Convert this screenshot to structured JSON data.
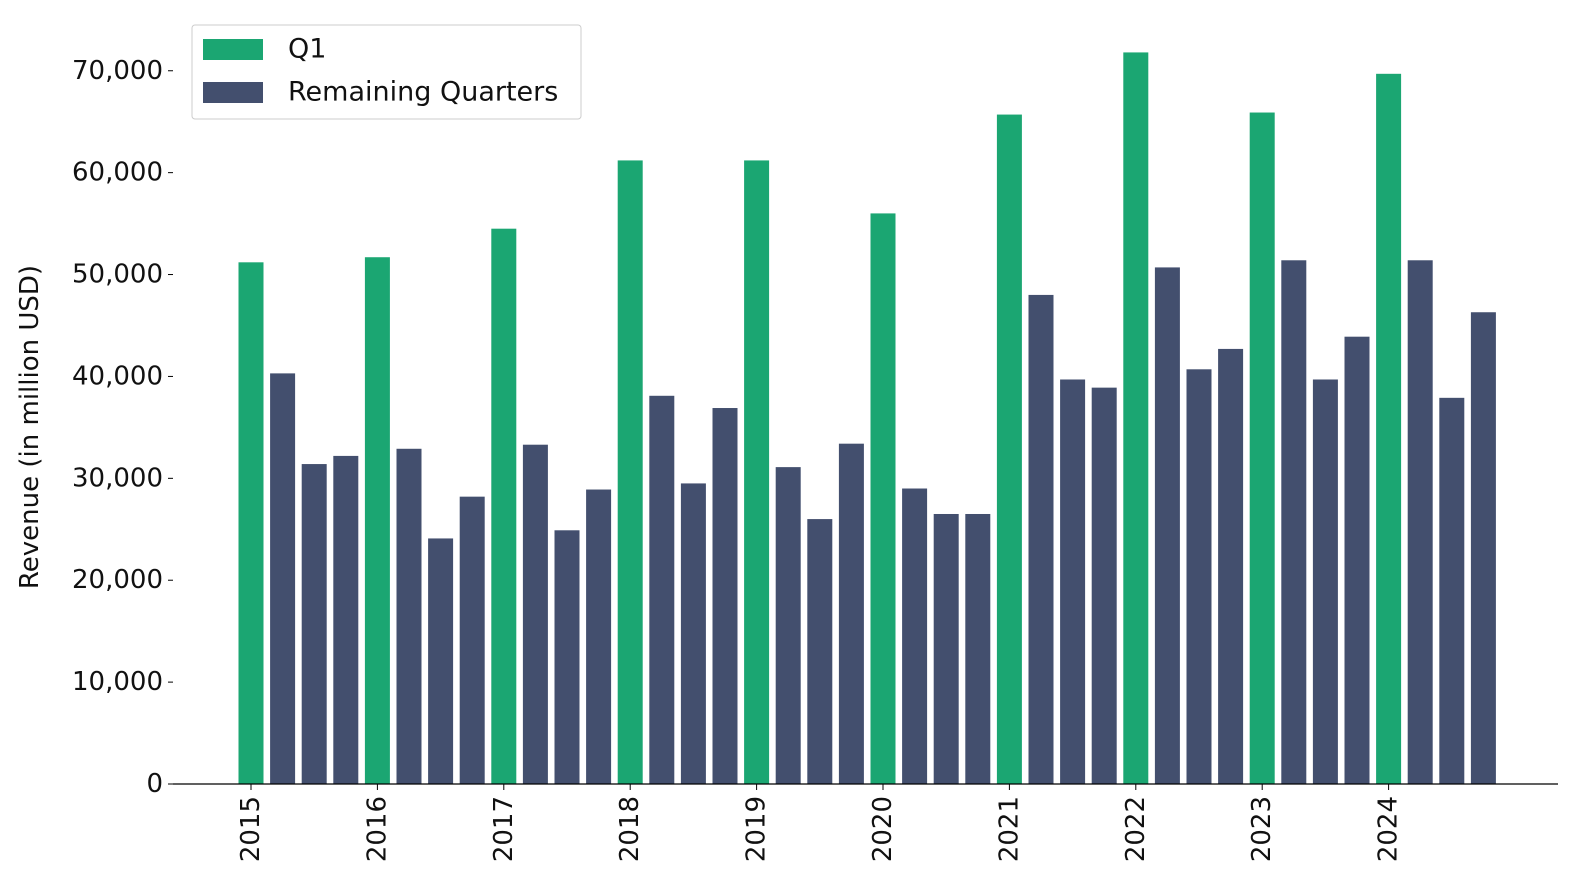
{
  "chart_data": {
    "type": "bar",
    "title": "",
    "xlabel": "",
    "ylabel": "Revenue (in million USD)",
    "ylim": [
      0,
      74000
    ],
    "yticks": [
      0,
      10000,
      20000,
      30000,
      40000,
      50000,
      60000,
      70000
    ],
    "ytick_labels": [
      "0",
      "10,000",
      "20,000",
      "30,000",
      "40,000",
      "50,000",
      "60,000",
      "70,000"
    ],
    "xtick_labels": [
      "2015",
      "2016",
      "2017",
      "2018",
      "2019",
      "2020",
      "2021",
      "2022",
      "2023",
      "2024"
    ],
    "legend_position": "top-left",
    "grid": false,
    "series": [
      {
        "name": "Q1",
        "color": "#1ba672"
      },
      {
        "name": "Remaining Quarters",
        "color": "#434f6e"
      }
    ],
    "bars": [
      {
        "year": 2015,
        "quarter": 1,
        "series": "Q1",
        "value": 51200
      },
      {
        "year": 2015,
        "quarter": 2,
        "series": "Remaining Quarters",
        "value": 40300
      },
      {
        "year": 2015,
        "quarter": 3,
        "series": "Remaining Quarters",
        "value": 31400
      },
      {
        "year": 2015,
        "quarter": 4,
        "series": "Remaining Quarters",
        "value": 32200
      },
      {
        "year": 2016,
        "quarter": 1,
        "series": "Q1",
        "value": 51700
      },
      {
        "year": 2016,
        "quarter": 2,
        "series": "Remaining Quarters",
        "value": 32900
      },
      {
        "year": 2016,
        "quarter": 3,
        "series": "Remaining Quarters",
        "value": 24100
      },
      {
        "year": 2016,
        "quarter": 4,
        "series": "Remaining Quarters",
        "value": 28200
      },
      {
        "year": 2017,
        "quarter": 1,
        "series": "Q1",
        "value": 54500
      },
      {
        "year": 2017,
        "quarter": 2,
        "series": "Remaining Quarters",
        "value": 33300
      },
      {
        "year": 2017,
        "quarter": 3,
        "series": "Remaining Quarters",
        "value": 24900
      },
      {
        "year": 2017,
        "quarter": 4,
        "series": "Remaining Quarters",
        "value": 28900
      },
      {
        "year": 2018,
        "quarter": 1,
        "series": "Q1",
        "value": 61200
      },
      {
        "year": 2018,
        "quarter": 2,
        "series": "Remaining Quarters",
        "value": 38100
      },
      {
        "year": 2018,
        "quarter": 3,
        "series": "Remaining Quarters",
        "value": 29500
      },
      {
        "year": 2018,
        "quarter": 4,
        "series": "Remaining Quarters",
        "value": 36900
      },
      {
        "year": 2019,
        "quarter": 1,
        "series": "Q1",
        "value": 61200
      },
      {
        "year": 2019,
        "quarter": 2,
        "series": "Remaining Quarters",
        "value": 31100
      },
      {
        "year": 2019,
        "quarter": 3,
        "series": "Remaining Quarters",
        "value": 26000
      },
      {
        "year": 2019,
        "quarter": 4,
        "series": "Remaining Quarters",
        "value": 33400
      },
      {
        "year": 2020,
        "quarter": 1,
        "series": "Q1",
        "value": 56000
      },
      {
        "year": 2020,
        "quarter": 2,
        "series": "Remaining Quarters",
        "value": 29000
      },
      {
        "year": 2020,
        "quarter": 3,
        "series": "Remaining Quarters",
        "value": 26500
      },
      {
        "year": 2020,
        "quarter": 4,
        "series": "Remaining Quarters",
        "value": 26500
      },
      {
        "year": 2021,
        "quarter": 1,
        "series": "Q1",
        "value": 65700
      },
      {
        "year": 2021,
        "quarter": 2,
        "series": "Remaining Quarters",
        "value": 48000
      },
      {
        "year": 2021,
        "quarter": 3,
        "series": "Remaining Quarters",
        "value": 39700
      },
      {
        "year": 2021,
        "quarter": 4,
        "series": "Remaining Quarters",
        "value": 38900
      },
      {
        "year": 2022,
        "quarter": 1,
        "series": "Q1",
        "value": 71800
      },
      {
        "year": 2022,
        "quarter": 2,
        "series": "Remaining Quarters",
        "value": 50700
      },
      {
        "year": 2022,
        "quarter": 3,
        "series": "Remaining Quarters",
        "value": 40700
      },
      {
        "year": 2022,
        "quarter": 4,
        "series": "Remaining Quarters",
        "value": 42700
      },
      {
        "year": 2023,
        "quarter": 1,
        "series": "Q1",
        "value": 65900
      },
      {
        "year": 2023,
        "quarter": 2,
        "series": "Remaining Quarters",
        "value": 51400
      },
      {
        "year": 2023,
        "quarter": 3,
        "series": "Remaining Quarters",
        "value": 39700
      },
      {
        "year": 2023,
        "quarter": 4,
        "series": "Remaining Quarters",
        "value": 43900
      },
      {
        "year": 2024,
        "quarter": 1,
        "series": "Q1",
        "value": 69700
      },
      {
        "year": 2024,
        "quarter": 2,
        "series": "Remaining Quarters",
        "value": 51400
      },
      {
        "year": 2024,
        "quarter": 3,
        "series": "Remaining Quarters",
        "value": 37900
      },
      {
        "year": 2024,
        "quarter": 4,
        "series": "Remaining Quarters",
        "value": 46300
      }
    ]
  }
}
